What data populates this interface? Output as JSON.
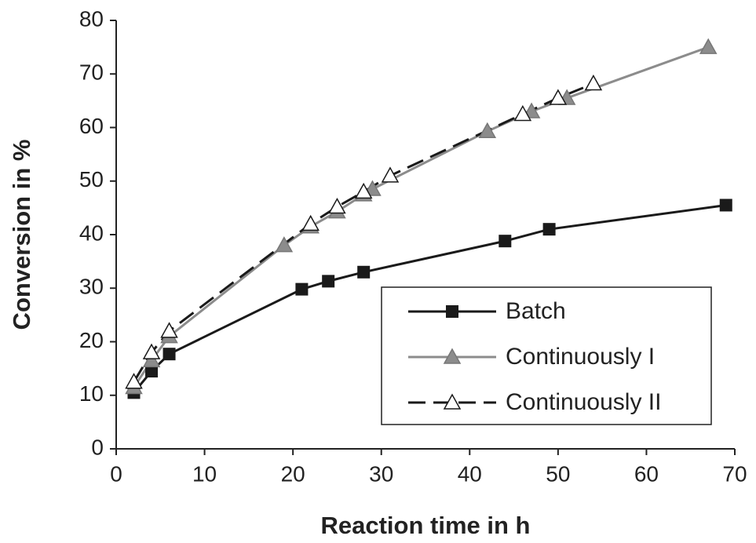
{
  "chart_data": {
    "type": "line",
    "x_label": "Reaction time in h",
    "y_label": "Conversion in %",
    "xlim": [
      0,
      70
    ],
    "xticks": [
      0,
      10,
      20,
      30,
      40,
      50,
      60,
      70
    ],
    "ylim": [
      0,
      80
    ],
    "yticks": [
      0,
      10,
      20,
      30,
      40,
      50,
      60,
      70,
      80
    ],
    "legend": "lower right",
    "series": [
      {
        "name": "Batch",
        "color": "#1a1a1a",
        "marker": "square",
        "dash": false,
        "x": [
          2,
          4,
          6,
          21,
          24,
          28,
          44,
          49,
          69
        ],
        "values": [
          10.5,
          14.5,
          17.7,
          29.8,
          31.3,
          33,
          38.8,
          41,
          45.5
        ]
      },
      {
        "name": "Continuously I",
        "color": "#8c8c8c",
        "marker": "triangle-filled",
        "dash": false,
        "x": [
          2,
          4,
          6,
          19,
          22,
          25,
          28,
          29,
          42,
          47,
          51,
          67
        ],
        "values": [
          11.5,
          16.5,
          21,
          38,
          41.5,
          44.3,
          47.5,
          48.5,
          59.3,
          63,
          65.5,
          75
        ]
      },
      {
        "name": "Continuously II",
        "color": "#1a1a1a",
        "marker": "triangle-open",
        "dash": true,
        "x": [
          2,
          4,
          6,
          22,
          25,
          28,
          31,
          46,
          50,
          54
        ],
        "values": [
          12.5,
          18,
          22,
          42,
          45.2,
          48,
          51,
          62.5,
          65.5,
          68.2
        ]
      }
    ]
  }
}
